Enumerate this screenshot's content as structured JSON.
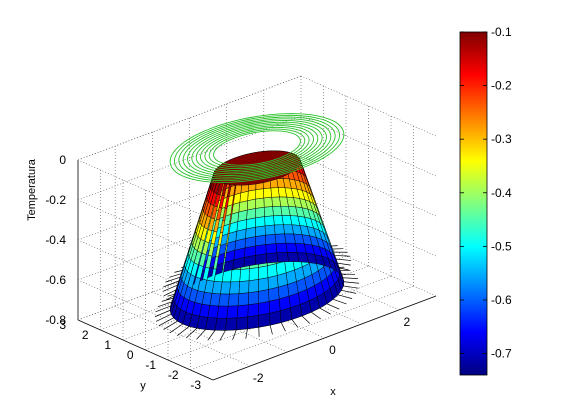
{
  "chart_data": {
    "type": "surface3d",
    "title": "",
    "xlabel": "x",
    "ylabel": "y",
    "zlabel": "Temperatura",
    "xlim": [
      -3,
      3
    ],
    "ylim": [
      -3,
      3
    ],
    "zlim": [
      -0.8,
      0
    ],
    "x_ticks": [
      "-2",
      "0",
      "2"
    ],
    "y_ticks": [
      "3",
      "2",
      "1",
      "0",
      "-1",
      "-2",
      "-3"
    ],
    "z_ticks": [
      "0",
      "-0.2",
      "-0.4",
      "-0.6",
      "-0.8"
    ],
    "grid": true,
    "surface": {
      "shape": "truncated-cone",
      "inner_radius": 1.0,
      "outer_radius": 2.0,
      "z_top": -0.1,
      "z_bottom": -0.74,
      "colormap": "jet"
    },
    "contours": {
      "color": "#2bc22b",
      "level_z": 0,
      "radii": [
        1.0,
        1.1,
        1.2,
        1.3,
        1.4,
        1.5,
        1.6,
        1.7,
        1.8,
        1.9,
        2.0
      ]
    },
    "colorbar": {
      "ticks": [
        "-0.1",
        "-0.2",
        "-0.3",
        "-0.4",
        "-0.5",
        "-0.6",
        "-0.7"
      ],
      "clim": [
        -0.74,
        -0.1
      ]
    }
  }
}
